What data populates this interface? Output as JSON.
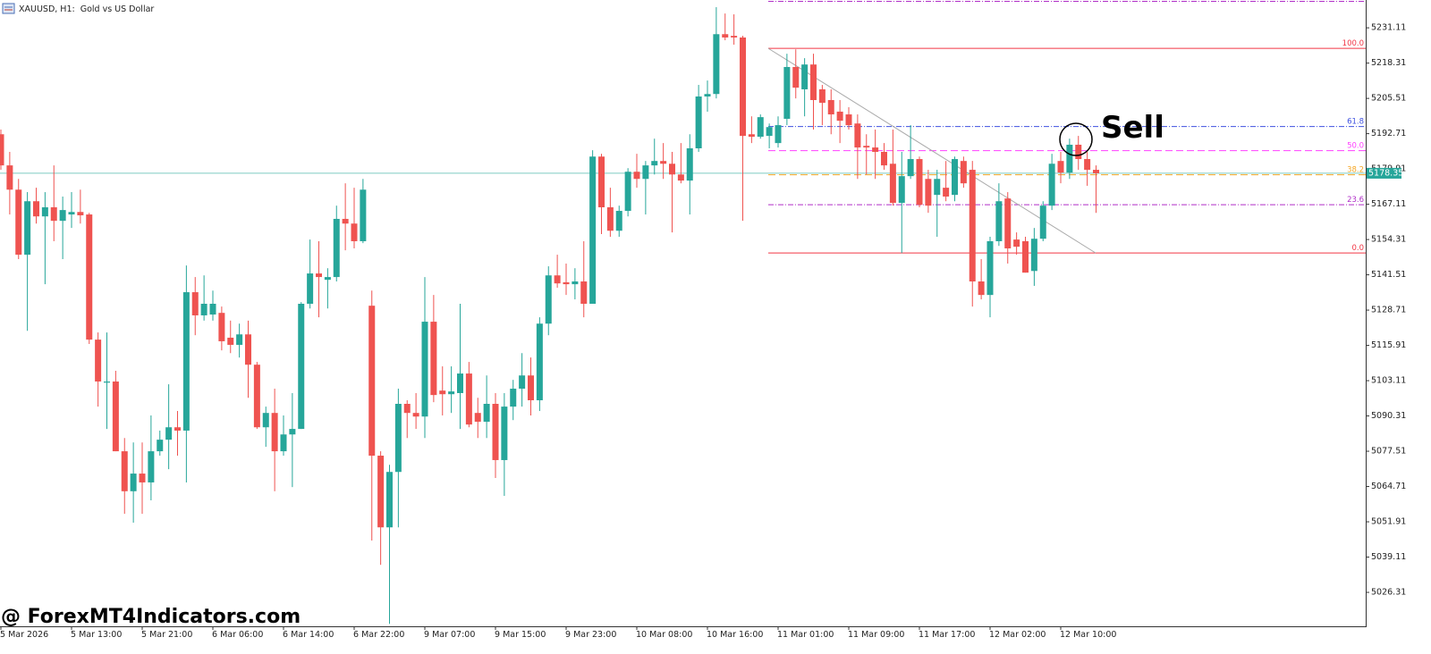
{
  "chart_data": {
    "type": "candlestick",
    "title": "XAUUSD, H1:  Gold vs US Dollar",
    "categories": [
      "5 Mar 2026",
      null,
      null,
      null,
      null,
      null,
      null,
      null,
      "5 Mar 13:00",
      null,
      null,
      null,
      null,
      null,
      null,
      null,
      "5 Mar 21:00",
      null,
      null,
      null,
      null,
      null,
      null,
      null,
      "6 Mar 06:00",
      null,
      null,
      null,
      null,
      null,
      null,
      null,
      "6 Mar 14:00",
      null,
      null,
      null,
      null,
      null,
      null,
      null,
      "6 Mar 22:00",
      null,
      null,
      null,
      null,
      null,
      null,
      null,
      "9 Mar 07:00",
      null,
      null,
      null,
      null,
      null,
      null,
      null,
      "9 Mar 15:00",
      null,
      null,
      null,
      null,
      null,
      null,
      null,
      "9 Mar 23:00",
      null,
      null,
      null,
      null,
      null,
      null,
      null,
      "10 Mar 08:00",
      null,
      null,
      null,
      null,
      null,
      null,
      null,
      "10 Mar 16:00",
      null,
      null,
      null,
      null,
      null,
      null,
      null,
      "11 Mar 01:00",
      null,
      null,
      null,
      null,
      null,
      null,
      null,
      "11 Mar 09:00",
      null,
      null,
      null,
      null,
      null,
      null,
      null,
      "11 Mar 17:00",
      null,
      null,
      null,
      null,
      null,
      null,
      null,
      "12 Mar 02:00",
      null,
      null,
      null,
      null,
      null,
      null,
      null,
      "12 Mar 10:00",
      null,
      null,
      null,
      null
    ],
    "open": [
      5192.5,
      5181.2,
      5172.4,
      5148.8,
      5168.2,
      5162.7,
      5166.0,
      5161.1,
      5163.4,
      5164.3,
      5163.4,
      5118.0,
      5102.4,
      5102.8,
      5077.5,
      5063.0,
      5069.4,
      5066.2,
      5077.5,
      5081.7,
      5086.2,
      5085.0,
      5135.2,
      5126.8,
      5127.1,
      5127.7,
      5118.7,
      5116.1,
      5119.9,
      5108.9,
      5086.2,
      5091.4,
      5077.5,
      5083.6,
      5085.6,
      5131.0,
      5142.0,
      5139.7,
      5140.7,
      5161.8,
      5160.1,
      5153.7,
      5130.3,
      5075.9,
      5049.9,
      5070.0,
      5094.7,
      5091.4,
      5090.1,
      5124.5,
      5099.5,
      5098.2,
      5098.6,
      5105.7,
      5091.4,
      5088.2,
      5094.7,
      5074.3,
      5093.7,
      5100.2,
      5105.0,
      5096.0,
      5123.8,
      5141.3,
      5138.8,
      5138.1,
      5139.1,
      5131.0,
      5184.4,
      5166.0,
      5157.5,
      5164.7,
      5178.9,
      5176.3,
      5181.2,
      5182.8,
      5181.8,
      5177.9,
      5175.7,
      5187.4,
      5206.2,
      5207.1,
      5228.8,
      5228.2,
      5227.6,
      5192.5,
      5191.6,
      5191.9,
      5189.3,
      5198.1,
      5216.9,
      5208.8,
      5217.8,
      5208.8,
      5204.9,
      5200.7,
      5199.7,
      5196.4,
      5188.3,
      5187.7,
      5186.1,
      5181.8,
      5167.6,
      5177.3,
      5183.5,
      5176.3,
      5170.5,
      5173.1,
      5170.5,
      5182.8,
      5179.6,
      5139.1,
      5134.2,
      5153.7,
      5169.2,
      5154.3,
      5153.7,
      5142.9,
      5154.6,
      5166.6,
      5182.8,
      5178.6,
      5188.7,
      5183.5,
      5179.6
    ],
    "high": [
      5194.2,
      5186.1,
      5176.3,
      5171.5,
      5173.1,
      5171.5,
      5181.2,
      5169.9,
      5171.5,
      5172.4,
      5164.0,
      5120.6,
      5120.6,
      5106.7,
      5082.3,
      5080.7,
      5080.7,
      5090.5,
      5085.0,
      5101.8,
      5092.1,
      5144.9,
      5140.7,
      5141.3,
      5135.8,
      5130.0,
      5124.9,
      5123.8,
      5124.9,
      5109.9,
      5093.7,
      5100.2,
      5090.5,
      5098.6,
      5131.6,
      5154.3,
      5153.7,
      5143.9,
      5166.6,
      5174.7,
      5173.1,
      5176.3,
      5135.8,
      5077.5,
      5072.6,
      5100.2,
      5096.0,
      5098.6,
      5140.7,
      5134.2,
      5108.3,
      5108.3,
      5131.0,
      5109.9,
      5096.9,
      5105.0,
      5098.6,
      5098.6,
      5103.4,
      5113.1,
      5111.5,
      5126.1,
      5144.6,
      5148.8,
      5145.6,
      5143.9,
      5153.7,
      5186.7,
      5185.4,
      5173.1,
      5166.6,
      5180.2,
      5185.4,
      5182.8,
      5190.9,
      5189.3,
      5186.1,
      5189.3,
      5192.5,
      5210.4,
      5212.0,
      5238.6,
      5236.3,
      5236.0,
      5228.2,
      5199.0,
      5199.7,
      5196.4,
      5199.0,
      5221.7,
      5223.3,
      5220.1,
      5221.7,
      5210.4,
      5208.8,
      5204.9,
      5202.3,
      5199.7,
      5192.5,
      5194.2,
      5189.3,
      5194.2,
      5186.1,
      5195.8,
      5184.4,
      5179.6,
      5179.6,
      5182.8,
      5184.4,
      5184.4,
      5182.8,
      5147.2,
      5155.3,
      5174.7,
      5171.5,
      5156.9,
      5155.3,
      5158.5,
      5168.2,
      5185.4,
      5186.1,
      5190.9,
      5191.9,
      5186.1,
      5181.2
    ],
    "low": [
      5179.6,
      5163.4,
      5147.2,
      5121.2,
      5160.1,
      5138.1,
      5153.7,
      5147.2,
      5158.5,
      5160.1,
      5116.4,
      5093.7,
      5085.6,
      5077.5,
      5054.8,
      5051.6,
      5054.8,
      5059.7,
      5075.9,
      5071.0,
      5075.9,
      5066.2,
      5119.6,
      5124.9,
      5124.9,
      5114.1,
      5113.1,
      5111.5,
      5096.9,
      5085.6,
      5079.1,
      5063.0,
      5075.9,
      5064.5,
      5085.6,
      5129.3,
      5126.1,
      5129.3,
      5139.1,
      5150.4,
      5151.1,
      5153.0,
      5045.1,
      5036.3,
      5014.9,
      5049.9,
      5082.3,
      5085.6,
      5082.3,
      5095.3,
      5090.5,
      5091.4,
      5085.6,
      5086.2,
      5082.3,
      5082.3,
      5067.8,
      5061.3,
      5088.8,
      5093.7,
      5090.5,
      5092.1,
      5119.6,
      5136.8,
      5134.2,
      5132.6,
      5126.1,
      5131.0,
      5156.3,
      5155.3,
      5155.3,
      5162.7,
      5173.1,
      5163.4,
      5177.9,
      5176.3,
      5156.9,
      5174.7,
      5163.4,
      5186.1,
      5200.7,
      5205.5,
      5226.6,
      5225.0,
      5161.1,
      5189.3,
      5190.9,
      5187.4,
      5187.7,
      5195.8,
      5205.5,
      5199.0,
      5194.2,
      5195.8,
      5192.5,
      5189.3,
      5194.2,
      5176.3,
      5177.9,
      5176.3,
      5179.6,
      5166.6,
      5149.4,
      5176.3,
      5166.0,
      5164.0,
      5155.3,
      5168.2,
      5168.2,
      5173.1,
      5130.0,
      5132.6,
      5126.1,
      5152.0,
      5145.6,
      5148.8,
      5142.3,
      5137.5,
      5153.7,
      5165.0,
      5174.7,
      5176.3,
      5179.6,
      5173.8,
      5164.0
    ],
    "close": [
      5181.2,
      5172.4,
      5148.8,
      5168.2,
      5162.7,
      5166.0,
      5161.1,
      5165.0,
      5164.3,
      5163.1,
      5118.0,
      5102.8,
      5102.8,
      5077.5,
      5063.0,
      5069.4,
      5066.2,
      5077.5,
      5081.7,
      5086.2,
      5085.0,
      5135.2,
      5126.8,
      5131.0,
      5131.0,
      5117.4,
      5116.1,
      5119.9,
      5108.9,
      5086.2,
      5091.4,
      5077.5,
      5083.6,
      5085.6,
      5131.0,
      5142.0,
      5140.7,
      5140.7,
      5161.8,
      5160.1,
      5153.7,
      5172.4,
      5075.9,
      5049.9,
      5070.0,
      5094.7,
      5091.4,
      5090.1,
      5124.5,
      5097.9,
      5098.2,
      5099.2,
      5105.7,
      5087.2,
      5088.2,
      5094.7,
      5074.3,
      5093.7,
      5100.2,
      5105.0,
      5096.0,
      5123.8,
      5141.3,
      5138.4,
      5138.1,
      5139.1,
      5131.0,
      5184.4,
      5166.0,
      5157.5,
      5164.7,
      5178.9,
      5176.3,
      5181.2,
      5182.8,
      5181.8,
      5177.9,
      5175.7,
      5187.4,
      5206.2,
      5207.1,
      5228.8,
      5227.6,
      5227.6,
      5191.9,
      5191.6,
      5198.7,
      5195.1,
      5195.8,
      5216.9,
      5209.4,
      5217.8,
      5204.9,
      5203.9,
      5199.7,
      5197.4,
      5195.8,
      5187.7,
      5187.7,
      5186.1,
      5181.2,
      5167.6,
      5177.3,
      5183.5,
      5166.9,
      5166.6,
      5176.3,
      5169.9,
      5183.5,
      5174.7,
      5139.1,
      5134.2,
      5153.7,
      5168.2,
      5151.1,
      5151.7,
      5142.3,
      5154.6,
      5166.6,
      5181.8,
      5178.6,
      5188.7,
      5183.5,
      5179.6,
      5178.35
    ],
    "up_color": "#26a69a",
    "down_color": "#ef5350",
    "ylim": [
      5014.0,
      5241.2
    ],
    "yticks": [
      5231.11,
      5218.31,
      5205.51,
      5192.71,
      5179.91,
      5167.11,
      5154.31,
      5141.51,
      5128.71,
      5115.91,
      5103.11,
      5090.31,
      5077.51,
      5064.71,
      5051.91,
      5039.11,
      5026.31
    ],
    "current_price": 5178.35,
    "current_price_color": "#26a69a",
    "fibonacci": [
      {
        "level": "100.0",
        "price": 5223.66,
        "color": "#f23645",
        "style": "solid"
      },
      {
        "level": "61.8",
        "price": 5195.3,
        "color": "#3f51e0",
        "style": "dashdot"
      },
      {
        "level": "50.0",
        "price": 5186.55,
        "color": "#ff40ff",
        "style": "dashed"
      },
      {
        "level": "38.2",
        "price": 5177.79,
        "color": "#f5a623",
        "style": "dashed"
      },
      {
        "level": "23.6",
        "price": 5166.95,
        "color": "#b02fc8",
        "style": "dashdot"
      },
      {
        "level": "0.0",
        "price": 5149.44,
        "color": "#f23645",
        "style": "solid"
      }
    ],
    "annotation": "Sell",
    "watermark": "@ ForexMT4Indicators.com"
  }
}
